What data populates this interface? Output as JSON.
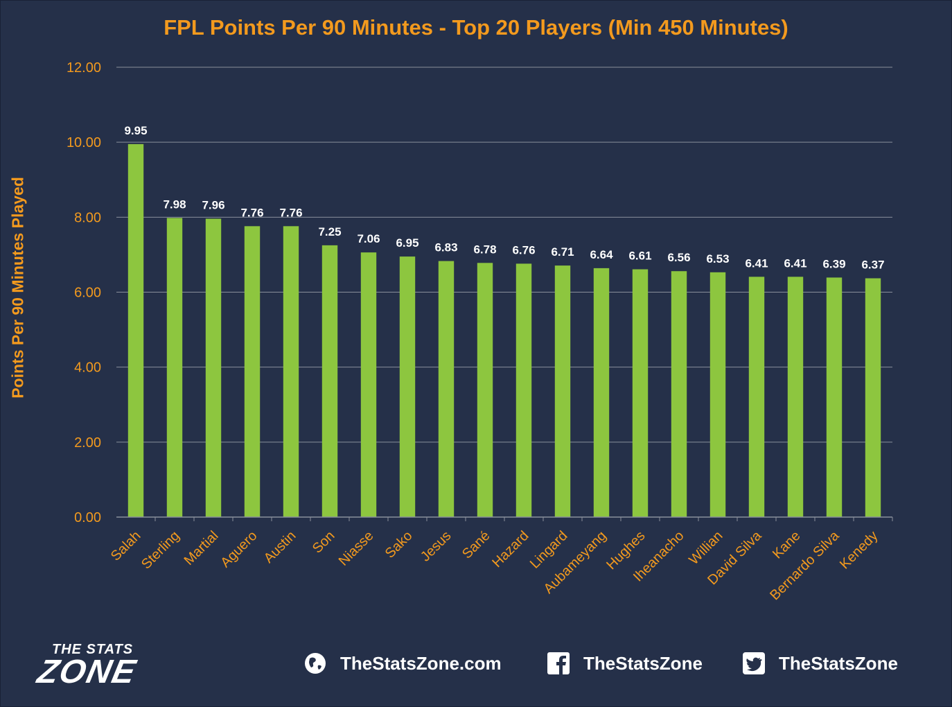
{
  "chart_data": {
    "type": "bar",
    "title": "FPL Points Per 90 Minutes - Top 20 Players (Min 450 Minutes)",
    "xlabel": "",
    "ylabel": "Points Per 90 Minutes Played",
    "ylim": [
      0,
      12
    ],
    "yticks": [
      "0.00",
      "2.00",
      "4.00",
      "6.00",
      "8.00",
      "10.00",
      "12.00"
    ],
    "grid": true,
    "legend": "none",
    "bar_color": "#8dc63f",
    "text_color": "#f39a1e",
    "categories": [
      "Salah",
      "Sterling",
      "Martial",
      "Aguero",
      "Austin",
      "Son",
      "Niasse",
      "Sako",
      "Jesus",
      "Sané",
      "Hazard",
      "Lingard",
      "Aubameyang",
      "Hughes",
      "Iheanacho",
      "Willian",
      "David Silva",
      "Kane",
      "Bernardo Silva",
      "Kenedy"
    ],
    "values": [
      9.95,
      7.98,
      7.96,
      7.76,
      7.76,
      7.25,
      7.06,
      6.95,
      6.83,
      6.78,
      6.76,
      6.71,
      6.64,
      6.61,
      6.56,
      6.53,
      6.41,
      6.41,
      6.39,
      6.37
    ]
  },
  "footer": {
    "logo_line1": "THE STATS",
    "logo_line2": "ZONE",
    "website": "TheStatsZone.com",
    "facebook": "TheStatsZone",
    "twitter": "TheStatsZone",
    "icons": [
      "globe-icon",
      "facebook-icon",
      "twitter-icon"
    ]
  }
}
